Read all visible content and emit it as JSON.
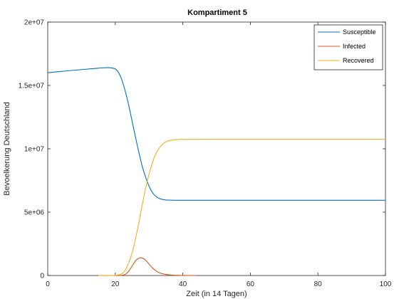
{
  "chart_data": {
    "type": "line",
    "title": "Kompartiment 5",
    "xlabel": "Zeit (in 14 Tagen)",
    "ylabel": "Bevoelkerung Deutschland",
    "xlim": [
      0,
      100
    ],
    "ylim": [
      0,
      20000000
    ],
    "xticks": [
      0,
      20,
      40,
      60,
      80,
      100
    ],
    "xtick_labels": [
      "0",
      "20",
      "40",
      "60",
      "80",
      "100"
    ],
    "yticks": [
      0,
      5000000,
      10000000,
      15000000,
      20000000
    ],
    "ytick_labels": [
      "0",
      "5e+06",
      "1e+07",
      "1.5e+07",
      "2e+07"
    ],
    "grid": false,
    "legend_position": "top-right",
    "series": [
      {
        "name": "Susceptible",
        "color": "#0072bd",
        "x": [
          0,
          5,
          10,
          15,
          18,
          20,
          21,
          22,
          23,
          24,
          25,
          26,
          27,
          28,
          29,
          30,
          31,
          32,
          33,
          34,
          35,
          36,
          38,
          40,
          50,
          60,
          70,
          80,
          90,
          100
        ],
        "y": [
          16000000,
          16130000,
          16250000,
          16360000,
          16400000,
          16300000,
          16000000,
          15400000,
          14500000,
          13400000,
          12150000,
          10900000,
          9700000,
          8600000,
          7750000,
          7050000,
          6550000,
          6250000,
          6080000,
          6000000,
          5960000,
          5950000,
          5940000,
          5940000,
          5940000,
          5940000,
          5940000,
          5940000,
          5940000,
          5940000
        ]
      },
      {
        "name": "Infected",
        "color": "#d95319",
        "x": [
          15,
          20,
          22,
          23,
          24,
          25,
          26,
          27,
          28,
          29,
          30,
          31,
          32,
          33,
          35,
          38,
          40,
          44
        ],
        "y": [
          0,
          0,
          20000,
          100000,
          350000,
          750000,
          1150000,
          1370000,
          1380000,
          1200000,
          900000,
          600000,
          380000,
          220000,
          80000,
          20000,
          5000,
          0
        ]
      },
      {
        "name": "Recovered",
        "color": "#edb120",
        "x": [
          15,
          20,
          22,
          23,
          24,
          25,
          26,
          27,
          28,
          29,
          30,
          31,
          32,
          33,
          34,
          35,
          36,
          38,
          40,
          50,
          60,
          70,
          80,
          90,
          100
        ],
        "y": [
          0,
          20000,
          150000,
          450000,
          1000000,
          1800000,
          2900000,
          4200000,
          5600000,
          6900000,
          8000000,
          8900000,
          9600000,
          10050000,
          10350000,
          10550000,
          10650000,
          10720000,
          10740000,
          10750000,
          10750000,
          10750000,
          10750000,
          10750000,
          10750000
        ]
      }
    ]
  }
}
